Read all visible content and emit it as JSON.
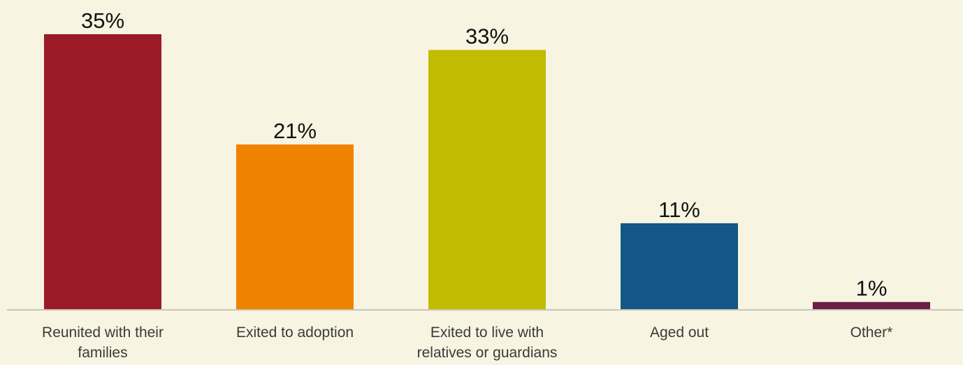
{
  "chart_data": {
    "type": "bar",
    "categories": [
      [
        "Reunited with their",
        "families"
      ],
      [
        "Exited to adoption"
      ],
      [
        "Exited to live with",
        "relatives or guardians"
      ],
      [
        "Aged out"
      ],
      [
        "Other*"
      ]
    ],
    "values": [
      35,
      21,
      33,
      11,
      1
    ],
    "value_labels": [
      "35%",
      "21%",
      "33%",
      "11%",
      "1%"
    ],
    "colors": [
      "#9b1c28",
      "#ef8200",
      "#c2bc00",
      "#125786",
      "#6a1f47"
    ],
    "ylim": [
      0,
      35
    ],
    "title": "",
    "xlabel": "",
    "ylabel": "",
    "grid": false,
    "legend": "none",
    "background": "#f7f4e1",
    "axis_color": "#c9c6b6"
  }
}
